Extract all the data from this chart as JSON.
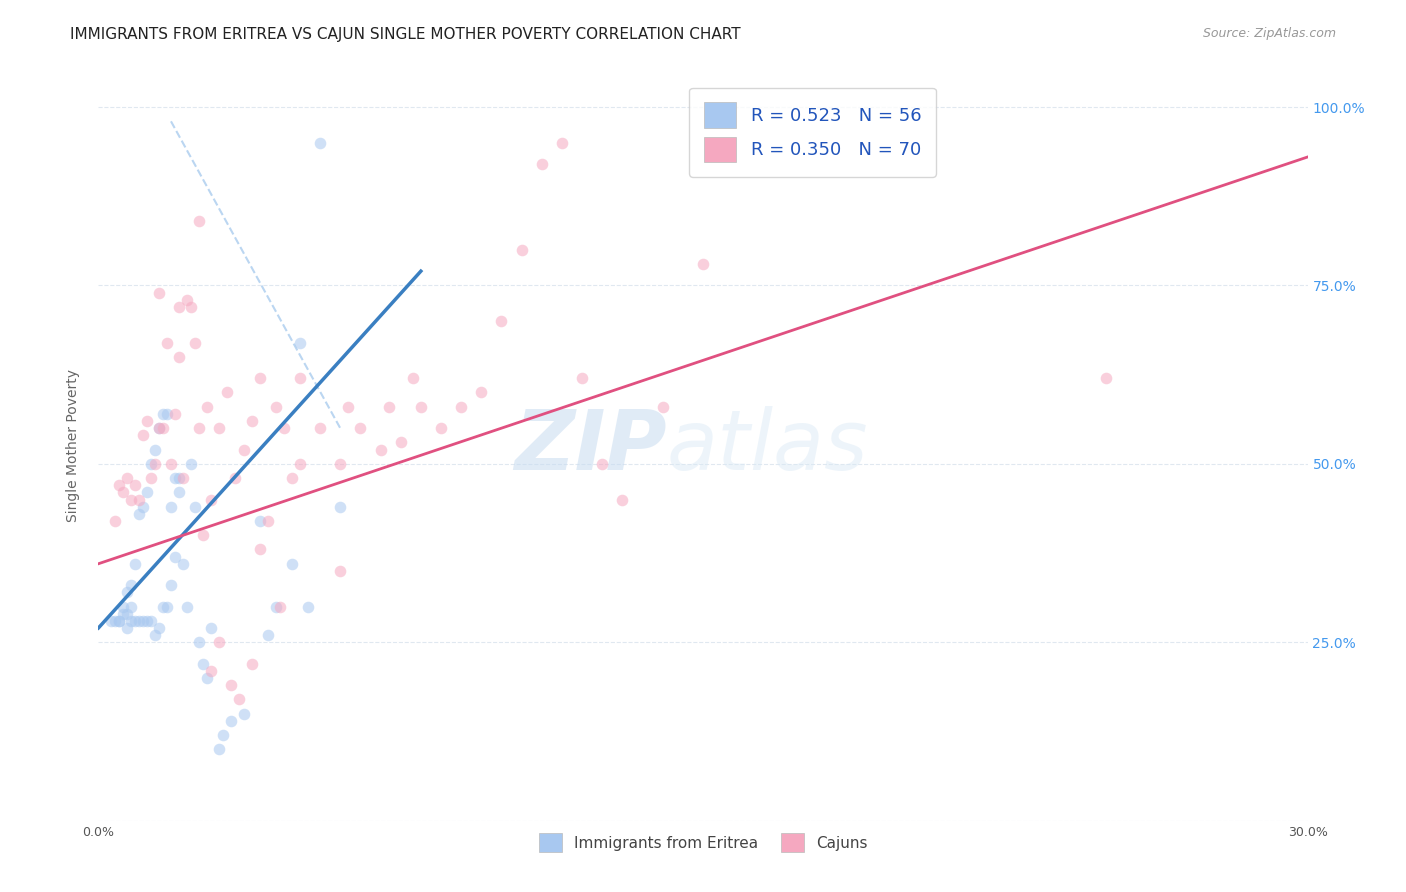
{
  "title": "IMMIGRANTS FROM ERITREA VS CAJUN SINGLE MOTHER POVERTY CORRELATION CHART",
  "source": "Source: ZipAtlas.com",
  "ylabel": "Single Mother Poverty",
  "legend_blue_r": "R = 0.523",
  "legend_blue_n": "N = 56",
  "legend_pink_r": "R = 0.350",
  "legend_pink_n": "N = 70",
  "legend_label_blue": "Immigrants from Eritrea",
  "legend_label_pink": "Cajuns",
  "blue_color": "#A8C8F0",
  "pink_color": "#F5A8C0",
  "blue_line_color": "#3A7FC1",
  "pink_line_color": "#E05080",
  "ref_line_color": "#AACCEE",
  "watermark_zip": "ZIP",
  "watermark_atlas": "atlas",
  "blue_scatter_x": [
    0.003,
    0.004,
    0.005,
    0.005,
    0.006,
    0.006,
    0.007,
    0.007,
    0.007,
    0.008,
    0.008,
    0.008,
    0.009,
    0.009,
    0.01,
    0.01,
    0.011,
    0.011,
    0.012,
    0.012,
    0.013,
    0.013,
    0.014,
    0.014,
    0.015,
    0.015,
    0.016,
    0.016,
    0.017,
    0.017,
    0.018,
    0.018,
    0.019,
    0.019,
    0.02,
    0.02,
    0.021,
    0.022,
    0.023,
    0.024,
    0.025,
    0.026,
    0.027,
    0.028,
    0.03,
    0.031,
    0.033,
    0.036,
    0.04,
    0.042,
    0.044,
    0.048,
    0.05,
    0.052,
    0.055,
    0.06
  ],
  "blue_scatter_y": [
    0.28,
    0.28,
    0.28,
    0.28,
    0.29,
    0.3,
    0.27,
    0.29,
    0.32,
    0.28,
    0.3,
    0.33,
    0.28,
    0.36,
    0.28,
    0.43,
    0.28,
    0.44,
    0.28,
    0.46,
    0.28,
    0.5,
    0.26,
    0.52,
    0.27,
    0.55,
    0.3,
    0.57,
    0.3,
    0.57,
    0.33,
    0.44,
    0.37,
    0.48,
    0.46,
    0.48,
    0.36,
    0.3,
    0.5,
    0.44,
    0.25,
    0.22,
    0.2,
    0.27,
    0.1,
    0.12,
    0.14,
    0.15,
    0.42,
    0.26,
    0.3,
    0.36,
    0.67,
    0.3,
    0.95,
    0.44
  ],
  "pink_scatter_x": [
    0.004,
    0.005,
    0.006,
    0.007,
    0.008,
    0.009,
    0.01,
    0.011,
    0.012,
    0.013,
    0.014,
    0.015,
    0.016,
    0.017,
    0.018,
    0.019,
    0.02,
    0.021,
    0.022,
    0.023,
    0.024,
    0.025,
    0.026,
    0.027,
    0.028,
    0.03,
    0.032,
    0.034,
    0.036,
    0.038,
    0.04,
    0.042,
    0.044,
    0.046,
    0.048,
    0.05,
    0.055,
    0.06,
    0.062,
    0.065,
    0.07,
    0.072,
    0.075,
    0.078,
    0.08,
    0.085,
    0.09,
    0.095,
    0.1,
    0.105,
    0.11,
    0.115,
    0.12,
    0.125,
    0.13,
    0.14,
    0.15,
    0.06,
    0.05,
    0.25,
    0.04,
    0.035,
    0.03,
    0.028,
    0.045,
    0.038,
    0.033,
    0.025,
    0.02,
    0.015
  ],
  "pink_scatter_y": [
    0.42,
    0.47,
    0.46,
    0.48,
    0.45,
    0.47,
    0.45,
    0.54,
    0.56,
    0.48,
    0.5,
    0.55,
    0.55,
    0.67,
    0.5,
    0.57,
    0.65,
    0.48,
    0.73,
    0.72,
    0.67,
    0.55,
    0.4,
    0.58,
    0.45,
    0.55,
    0.6,
    0.48,
    0.52,
    0.56,
    0.62,
    0.42,
    0.58,
    0.55,
    0.48,
    0.62,
    0.55,
    0.5,
    0.58,
    0.55,
    0.52,
    0.58,
    0.53,
    0.62,
    0.58,
    0.55,
    0.58,
    0.6,
    0.7,
    0.8,
    0.92,
    0.95,
    0.62,
    0.5,
    0.45,
    0.58,
    0.78,
    0.35,
    0.5,
    0.62,
    0.38,
    0.17,
    0.25,
    0.21,
    0.3,
    0.22,
    0.19,
    0.84,
    0.72,
    0.74
  ],
  "xlim": [
    0.0,
    0.3
  ],
  "ylim": [
    0.0,
    1.05
  ],
  "blue_line_x": [
    0.0,
    0.08
  ],
  "blue_line_y": [
    0.27,
    0.77
  ],
  "pink_line_x": [
    0.0,
    0.3
  ],
  "pink_line_y": [
    0.36,
    0.93
  ],
  "ref_line_x": [
    0.018,
    0.06
  ],
  "ref_line_y": [
    0.98,
    0.55
  ],
  "title_fontsize": 11,
  "source_fontsize": 9,
  "axis_label_fontsize": 10,
  "tick_fontsize": 9,
  "legend_fontsize": 13,
  "scatter_size": 70,
  "scatter_alpha": 0.55
}
